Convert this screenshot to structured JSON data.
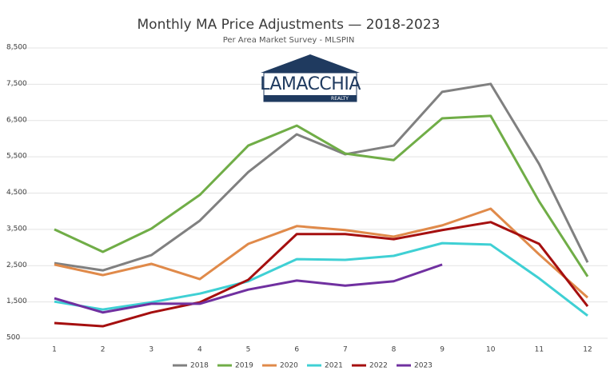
{
  "chart_data": {
    "type": "line",
    "title": "Monthly MA Price Adjustments — 2018-2023",
    "subtitle": "Per Area Market Survey - MLSPIN",
    "logo": {
      "name": "LAMACCHIA",
      "tagline": "REALTY"
    },
    "x": [
      1,
      2,
      3,
      4,
      5,
      6,
      7,
      8,
      9,
      10,
      11,
      12
    ],
    "xlim": [
      1,
      12
    ],
    "xticks": [
      1,
      2,
      3,
      4,
      5,
      6,
      7,
      8,
      9,
      10,
      11,
      12
    ],
    "ylim": [
      500,
      8500
    ],
    "yticks": [
      500,
      {
        "value": 1500,
        "label": "1,500"
      },
      {
        "value": 2500,
        "label": "2,500"
      },
      {
        "value": 3500,
        "label": "3,500"
      },
      {
        "value": 4500,
        "label": "4,500"
      },
      {
        "value": 5500,
        "label": "5,500"
      },
      {
        "value": 6500,
        "label": "6,500"
      },
      {
        "value": 7500,
        "label": "7,500"
      },
      {
        "value": 8500,
        "label": "8,500"
      }
    ],
    "grid": true,
    "legend": "bottom",
    "series": [
      {
        "name": "2018",
        "color": "#808080",
        "values": [
          2570,
          2370,
          2790,
          3740,
          5080,
          6120,
          5570,
          5810,
          7290,
          7510,
          5300,
          2590
        ]
      },
      {
        "name": "2019",
        "color": "#70ad47",
        "values": [
          3500,
          2880,
          3520,
          4450,
          5810,
          6360,
          5590,
          5410,
          6560,
          6630,
          4270,
          2200
        ]
      },
      {
        "name": "2020",
        "color": "#e08a4a",
        "values": [
          2530,
          2240,
          2550,
          2130,
          3100,
          3590,
          3480,
          3300,
          3610,
          4070,
          2810,
          1620
        ]
      },
      {
        "name": "2021",
        "color": "#3fd0d4",
        "values": [
          1510,
          1290,
          1490,
          1730,
          2070,
          2680,
          2660,
          2770,
          3120,
          3080,
          2150,
          1120
        ]
      },
      {
        "name": "2022",
        "color": "#a50f0f",
        "values": [
          920,
          830,
          1210,
          1490,
          2110,
          3370,
          3370,
          3230,
          3480,
          3700,
          3100,
          1380
        ]
      },
      {
        "name": "2023",
        "color": "#7030a0",
        "values": [
          1600,
          1210,
          1450,
          1450,
          1840,
          2090,
          1950,
          2070,
          2530,
          null,
          null,
          null
        ]
      }
    ]
  }
}
